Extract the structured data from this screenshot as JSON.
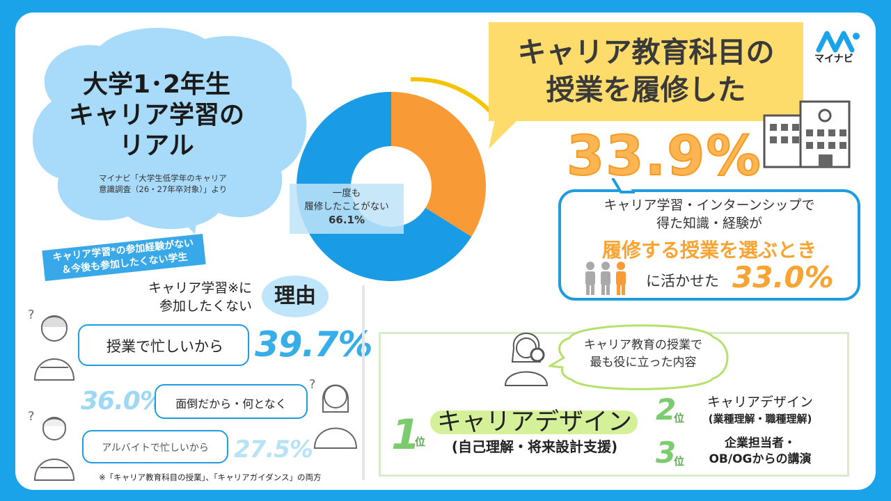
{
  "title": {
    "line1": "大学1･2年生",
    "line2": "キャリア学習の",
    "line3": "リアル"
  },
  "source": {
    "line1": "マイナビ「大学生低学年のキャリア",
    "line2": "意識調査（26・27年卒対象）」より"
  },
  "logo": {
    "text": "マイナビ"
  },
  "banner": {
    "line1": "キャリア学習*の参加経験がない",
    "line2": "＆今後も参加したくない学生"
  },
  "reasons": {
    "question_line1": "キャリア学習※に",
    "question_line2": "参加したくない",
    "keyword": "理由",
    "items": [
      {
        "label": "授業で忙しいから",
        "value": "39.7%"
      },
      {
        "label": "面倒だから・何となく",
        "value": "36.0%"
      },
      {
        "label": "アルバイトで忙しいから",
        "value": "27.5%"
      }
    ],
    "footnote": "※「キャリア教育科目の授業」、「キャリアガイダンス」の両方"
  },
  "chart_data": {
    "type": "pie",
    "donut": true,
    "categories": [
      "キャリア教育科目の授業を履修した",
      "一度も履修したことがない"
    ],
    "values": [
      33.9,
      66.1
    ],
    "colors": [
      "#f89a35",
      "#1a9be5"
    ],
    "labels": {
      "taken_line1": "キャリア教育科目の",
      "taken_line2": "授業を履修した",
      "taken_value": "33.9%",
      "never_line1": "一度も",
      "never_line2": "履修したことがない",
      "never_value": "66.1%"
    }
  },
  "knowledge": {
    "line1": "キャリア学習・インターンシップで",
    "line2": "得た知識・経験が",
    "highlight": "履修する授業を選ぶとき",
    "line3": "に活かせた",
    "value": "33.0%"
  },
  "useful": {
    "bubble_line1": "キャリア教育の授業で",
    "bubble_line2": "最も役に立った内容",
    "rank_suffix": "位",
    "rank1": {
      "num": "1",
      "main": "キャリアデザイン",
      "sub": "(自己理解・将来設計支援)"
    },
    "rank2": {
      "num": "2",
      "line1": "キャリアデザイン",
      "line2": "(業種理解・職種理解)"
    },
    "rank3": {
      "num": "3",
      "line1": "企業担当者・",
      "line2": "OB/OGからの講演"
    }
  },
  "colors": {
    "frame": "#1aa3e8",
    "orange": "#f89a35",
    "blue": "#1a9be5",
    "yellow": "#fedc6b",
    "green": "#7ccb6f",
    "lime": "#d4f19a"
  }
}
